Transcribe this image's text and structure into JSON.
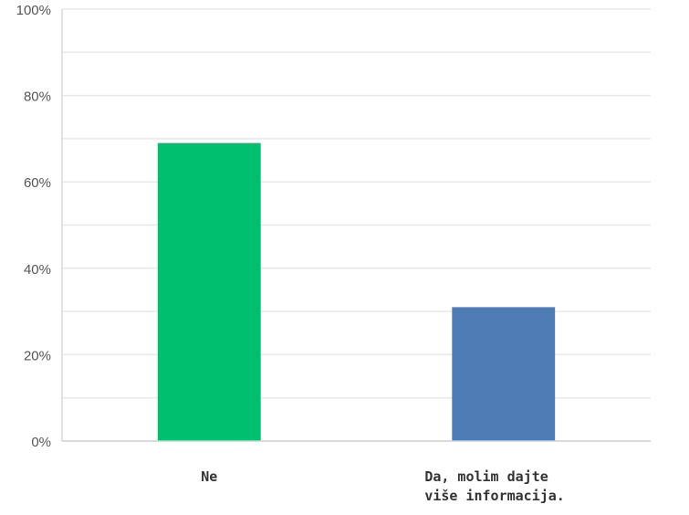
{
  "chart_data": {
    "type": "bar",
    "categories": [
      "Ne",
      "Da, molim dajte više informacija."
    ],
    "category_lines": [
      [
        "Ne"
      ],
      [
        "Da, molim dajte",
        "više informacija."
      ]
    ],
    "values": [
      69,
      31
    ],
    "colors": [
      "#00bf6f",
      "#507cb6"
    ],
    "ylim": [
      0,
      100
    ],
    "yticks": [
      0,
      20,
      40,
      60,
      80,
      100
    ],
    "ytick_labels": [
      "0%",
      "20%",
      "40%",
      "60%",
      "80%",
      "100%"
    ],
    "grid": true,
    "title": "",
    "xlabel": "",
    "ylabel": ""
  }
}
